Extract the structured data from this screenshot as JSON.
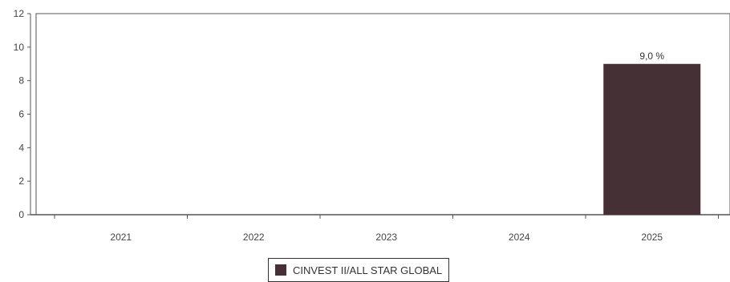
{
  "chart_data": {
    "type": "bar",
    "categories": [
      "2021",
      "2022",
      "2023",
      "2024",
      "2025"
    ],
    "series": [
      {
        "name": "CINVEST II/ALL STAR GLOBAL",
        "values": [
          null,
          null,
          null,
          null,
          9.0
        ],
        "data_labels": [
          "",
          "",
          "",
          "",
          "9,0 %"
        ],
        "color": "#443035"
      }
    ],
    "title": "",
    "xlabel": "",
    "ylabel": "",
    "ylim": [
      0,
      12
    ],
    "yticks": [
      "0",
      "2",
      "4",
      "6",
      "8",
      "10",
      "12"
    ],
    "grid": false,
    "legend_position": "bottom-center"
  }
}
